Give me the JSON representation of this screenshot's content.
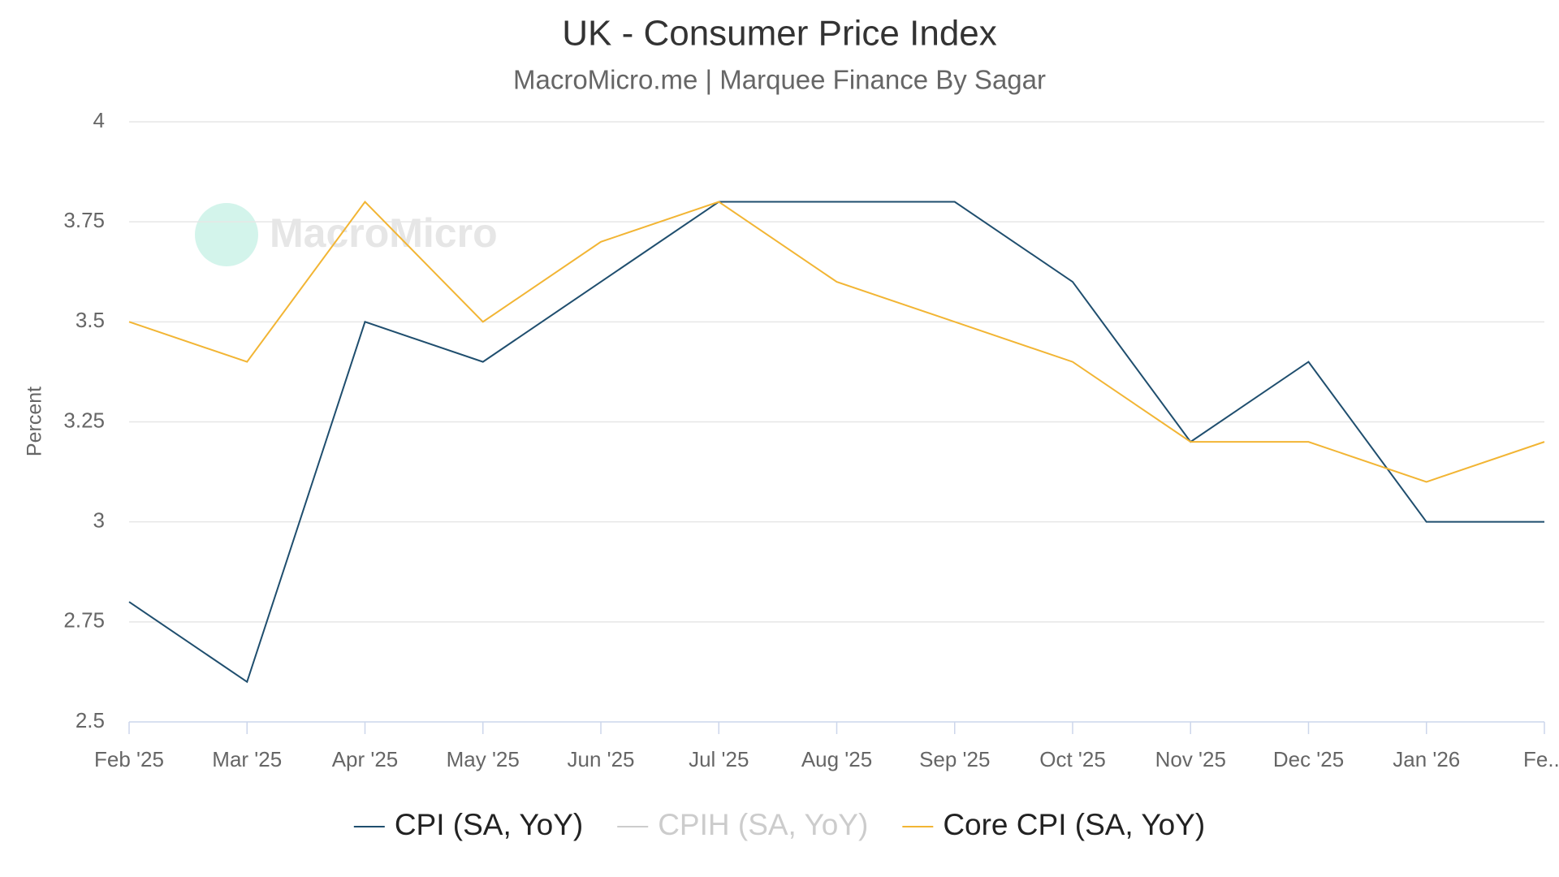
{
  "chart_data": {
    "type": "line",
    "title": "UK - Consumer Price Index",
    "subtitle": "MacroMicro.me | Marquee Finance By Sagar",
    "watermark": "MacroMicro",
    "y_label": "Percent",
    "categories": [
      "Feb '25",
      "Mar '25",
      "Apr '25",
      "May '25",
      "Jun '25",
      "Jul '25",
      "Aug '25",
      "Sep '25",
      "Oct '25",
      "Nov '25",
      "Dec '25",
      "Jan '26",
      "Fe..."
    ],
    "series": [
      {
        "name": "CPI (SA, YoY)",
        "color": "#1f4e6e",
        "values": [
          2.8,
          2.6,
          3.5,
          3.4,
          3.6,
          3.8,
          3.8,
          3.8,
          3.6,
          3.2,
          3.4,
          3.0,
          3.0
        ]
      },
      {
        "name": "CPIH (SA, YoY)",
        "color": "#cccccc",
        "hidden": true,
        "values": [
          null,
          null,
          null,
          null,
          null,
          null,
          null,
          null,
          null,
          null,
          null,
          null,
          null
        ]
      },
      {
        "name": "Core CPI (SA, YoY)",
        "color": "#f2b534",
        "values": [
          3.5,
          3.4,
          3.8,
          3.5,
          3.7,
          3.8,
          3.6,
          3.5,
          3.4,
          3.2,
          3.2,
          3.1,
          3.2
        ]
      }
    ],
    "ylim": [
      2.5,
      4
    ],
    "yticks": [
      2.5,
      2.75,
      3,
      3.25,
      3.5,
      3.75,
      4
    ],
    "grid": true
  }
}
